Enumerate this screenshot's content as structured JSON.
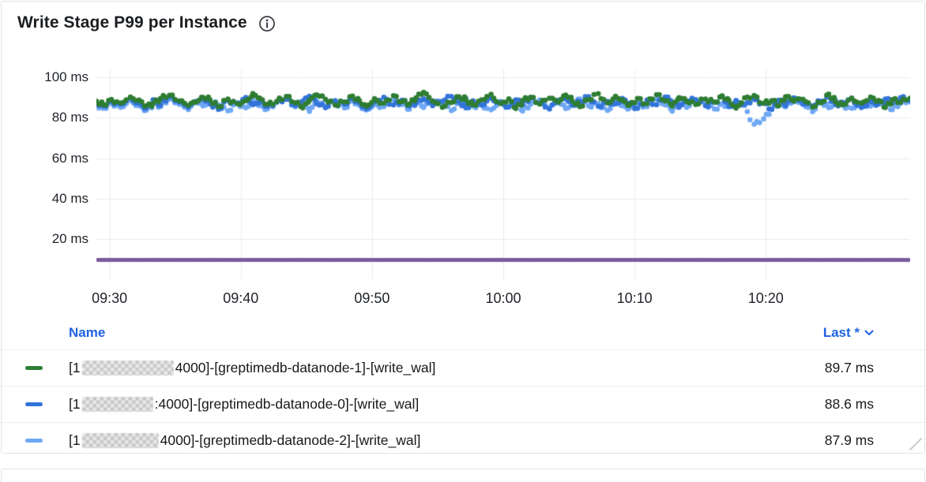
{
  "panel": {
    "title": "Write Stage P99 per Instance"
  },
  "colors": {
    "accent_blue": "#1F62E0",
    "grid": "#E9EBEE",
    "panel_border": "#E2E3E5",
    "series_green": "#2E7D32",
    "series_blue": "#3274D9",
    "series_light_blue": "#6FA8F5",
    "series_purple": "#7A5C9E"
  },
  "chart_data": {
    "type": "scatter",
    "title": "Write Stage P99 per Instance",
    "xlabel": "",
    "ylabel": "",
    "x_axis": {
      "start": "09:29",
      "end": "10:31",
      "total_minutes": 62,
      "tick_labels": [
        "09:30",
        "09:40",
        "09:50",
        "10:00",
        "10:10",
        "10:20"
      ],
      "tick_minutes_from_start": [
        1,
        11,
        21,
        31,
        41,
        51
      ]
    },
    "y_axis": {
      "unit": "ms",
      "min": 0,
      "max": 104,
      "tick_values": [
        20,
        40,
        60,
        80,
        100
      ],
      "tick_labels": [
        "20 ms",
        "40 ms",
        "60 ms",
        "80 ms",
        "100 ms"
      ],
      "grid": true
    },
    "legend_position": "bottom-table",
    "series": [
      {
        "name": "[1***:4000]-[greptimedb-datanode-1]-[write_wal]",
        "color": "#2E7D32",
        "style": "points",
        "last": 89.7,
        "values": [
          88.2,
          86.5,
          89.1,
          87.4,
          90.3,
          88.8,
          85.9,
          87.2,
          89.6,
          91.2,
          88.4,
          86.1,
          87.8,
          90.1,
          88.9,
          85.4,
          89.3,
          87.0,
          88.6,
          92.1,
          89.8,
          86.7,
          88.1,
          90.6,
          87.5,
          84.9,
          88.7,
          91.4,
          89.2,
          86.3,
          87.9,
          90.8,
          88.5,
          85.7,
          89.5,
          87.3,
          91.0,
          88.0,
          86.9,
          89.9,
          92.6,
          88.3,
          85.2,
          87.6,
          90.4,
          89.0,
          86.4,
          88.9,
          91.7,
          87.1,
          89.4,
          84.6,
          88.6,
          90.2,
          86.8,
          89.7,
          87.7,
          91.3,
          88.2,
          85.5,
          89.1,
          92.0,
          87.4,
          90.7,
          88.8,
          86.2,
          89.6,
          87.0,
          91.5,
          88.4,
          85.8,
          90.0,
          88.1,
          86.6,
          89.3,
          87.8,
          90.9,
          88.7,
          84.8,
          89.9,
          91.1,
          87.2,
          88.5,
          86.0,
          90.5,
          88.3,
          89.2,
          85.3,
          87.5,
          91.8,
          88.0,
          86.5,
          89.8,
          87.3,
          90.3,
          88.6,
          85.1,
          89.0,
          87.7,
          89.7
        ]
      },
      {
        "name": "[1***:4000]-[greptimedb-datanode-0]-[write_wal]",
        "color": "#3274D9",
        "style": "points",
        "last": 88.6,
        "values": [
          87.6,
          85.9,
          88.4,
          86.7,
          89.8,
          87.1,
          84.8,
          88.9,
          86.2,
          90.4,
          87.8,
          85.3,
          88.1,
          89.5,
          86.9,
          84.2,
          88.6,
          87.3,
          90.1,
          86.5,
          88.8,
          85.6,
          87.9,
          89.2,
          86.1,
          88.3,
          90.7,
          87.0,
          85.0,
          88.5,
          86.8,
          89.9,
          87.4,
          84.5,
          88.0,
          90.2,
          86.4,
          88.7,
          85.8,
          87.2,
          89.4,
          86.0,
          88.2,
          90.6,
          87.7,
          84.9,
          88.4,
          86.3,
          89.7,
          87.5,
          85.4,
          88.9,
          86.6,
          90.0,
          87.1,
          84.4,
          88.6,
          89.3,
          86.2,
          87.9,
          90.5,
          85.7,
          88.1,
          86.9,
          89.6,
          87.3,
          84.7,
          88.8,
          86.5,
          90.3,
          87.6,
          85.2,
          88.3,
          89.0,
          86.0,
          87.8,
          90.8,
          85.5,
          88.5,
          86.7,
          89.1,
          87.2,
          84.3,
          88.7,
          86.1,
          89.9,
          87.0,
          85.9,
          88.2,
          90.1,
          86.6,
          87.7,
          89.5,
          85.1,
          88.0,
          86.8,
          89.3,
          87.4,
          90.0,
          88.6
        ]
      },
      {
        "name": "[1***:4000]-[greptimedb-datanode-2]-[write_wal]",
        "color": "#6FA8F5",
        "style": "points",
        "last": 87.9,
        "values": [
          86.3,
          84.7,
          87.5,
          85.2,
          88.6,
          86.0,
          83.8,
          87.1,
          85.6,
          89.2,
          86.7,
          84.1,
          87.8,
          85.9,
          88.3,
          86.4,
          83.5,
          87.3,
          85.0,
          88.9,
          86.1,
          84.5,
          87.6,
          89.5,
          85.4,
          86.9,
          83.2,
          88.0,
          85.7,
          87.4,
          84.9,
          88.7,
          86.2,
          83.9,
          87.0,
          85.5,
          89.0,
          86.6,
          84.3,
          87.7,
          85.1,
          88.4,
          86.8,
          83.6,
          87.2,
          89.8,
          85.8,
          86.5,
          84.0,
          88.1,
          85.3,
          87.9,
          83.4,
          86.7,
          88.8,
          85.0,
          87.5,
          84.6,
          86.3,
          89.3,
          85.9,
          87.1,
          83.7,
          88.5,
          86.0,
          84.8,
          87.8,
          85.5,
          89.1,
          86.4,
          83.3,
          87.4,
          85.2,
          88.2,
          86.9,
          84.4,
          87.0,
          85.7,
          88.6,
          86.1,
          76.8,
          79.5,
          84.2,
          87.3,
          85.4,
          88.0,
          86.6,
          83.1,
          87.7,
          85.0,
          88.9,
          86.2,
          84.7,
          87.5,
          85.8,
          88.3,
          86.5,
          84.1,
          87.2,
          87.9
        ]
      },
      {
        "name": "",
        "color": "#7A5C9E",
        "style": "line",
        "value": 9.6
      }
    ]
  },
  "legend": {
    "header": {
      "name_label": "Name",
      "last_label": "Last *"
    },
    "rows": [
      {
        "prefix": "[1",
        "ip_redacted": true,
        "suffix": "4000]-[greptimedb-datanode-1]-[write_wal]",
        "last": "89.7 ms"
      },
      {
        "prefix": "[1",
        "ip_redacted": true,
        "suffix": ":4000]-[greptimedb-datanode-0]-[write_wal]",
        "last": "88.6 ms"
      },
      {
        "prefix": "[1",
        "ip_redacted": true,
        "suffix": "4000]-[greptimedb-datanode-2]-[write_wal]",
        "last": "87.9 ms"
      }
    ]
  }
}
